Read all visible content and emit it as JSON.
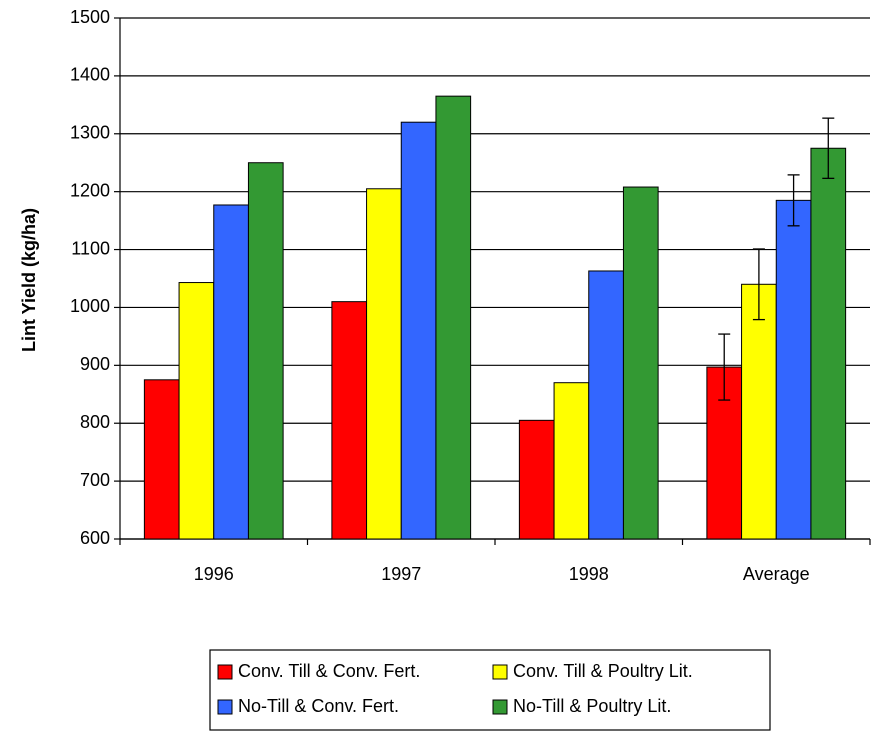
{
  "chart_data": {
    "type": "bar",
    "y_label": "Lint Yield (kg/ha)",
    "categories": [
      "1996",
      "1997",
      "1998",
      "Average"
    ],
    "series": [
      {
        "name": "Conv. Till & Conv. Fert.",
        "color": "#ff0000",
        "values": [
          875,
          1010,
          805,
          897
        ],
        "errors": [
          null,
          null,
          null,
          57
        ]
      },
      {
        "name": "Conv. Till & Poultry Lit.",
        "color": "#ffff00",
        "values": [
          1043,
          1205,
          870,
          1040
        ],
        "errors": [
          null,
          null,
          null,
          61
        ]
      },
      {
        "name": "No-Till & Conv. Fert.",
        "color": "#3366ff",
        "values": [
          1177,
          1320,
          1063,
          1185
        ],
        "errors": [
          null,
          null,
          null,
          44
        ]
      },
      {
        "name": "No-Till & Poultry Lit.",
        "color": "#339933",
        "values": [
          1250,
          1365,
          1208,
          1275
        ],
        "errors": [
          null,
          null,
          null,
          52
        ]
      }
    ],
    "ylim": [
      600,
      1500
    ],
    "yticks": [
      600,
      700,
      800,
      900,
      1000,
      1100,
      1200,
      1300,
      1400,
      1500
    ],
    "grid": true,
    "legend": "bottom"
  }
}
